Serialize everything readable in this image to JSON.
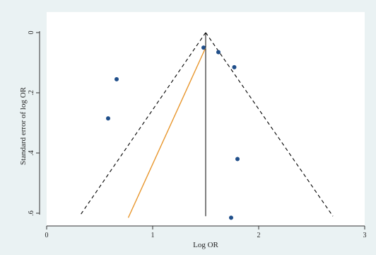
{
  "chart_data": {
    "type": "scatter",
    "title": "",
    "xlabel": "Log OR",
    "ylabel": "Standard error of log OR",
    "xlim": [
      0,
      3
    ],
    "ylim": [
      0,
      0.6
    ],
    "y_reversed": true,
    "xticks": [
      0,
      1,
      2,
      3
    ],
    "xtick_labels": [
      "0",
      "1",
      "2",
      "3"
    ],
    "yticks": [
      0,
      0.2,
      0.4,
      0.6
    ],
    "ytick_labels": [
      "0",
      ".2",
      ".4",
      ".6"
    ],
    "grid": false,
    "points": [
      {
        "x": 1.48,
        "y": 0.05
      },
      {
        "x": 1.62,
        "y": 0.065
      },
      {
        "x": 1.77,
        "y": 0.115
      },
      {
        "x": 0.66,
        "y": 0.155
      },
      {
        "x": 0.58,
        "y": 0.285
      },
      {
        "x": 1.8,
        "y": 0.42
      },
      {
        "x": 1.74,
        "y": 0.615
      }
    ],
    "pooled_estimate": 1.5,
    "funnel_limits": {
      "apex": {
        "x": 1.5,
        "y": 0
      },
      "left_base": {
        "x": 0.31,
        "y": 0.61
      },
      "right_base": {
        "x": 2.7,
        "y": 0.61
      }
    },
    "regression_line": {
      "x1": 0.77,
      "y1": 0.615,
      "x2": 1.5,
      "y2": 0.05
    },
    "colors": {
      "background": "#eaf2f3",
      "plot_area": "#ffffff",
      "points": "#1f4e8a",
      "funnel": "#000000",
      "regression": "#e8962c",
      "vertical_line": "#000000"
    }
  }
}
